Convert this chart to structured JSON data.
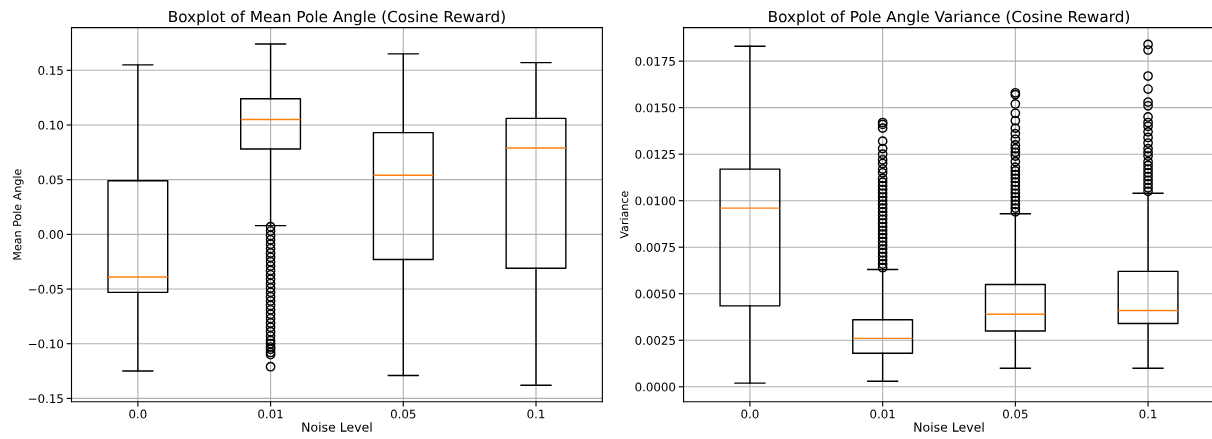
{
  "chart_data": [
    {
      "type": "box",
      "title": "Boxplot of Mean Pole Angle (Cosine Reward)",
      "xlabel": "Noise Level",
      "ylabel": "Mean Pole Angle",
      "categories": [
        "0.0",
        "0.01",
        "0.05",
        "0.1"
      ],
      "boxes": [
        {
          "low": -0.125,
          "q1": -0.053,
          "median": -0.039,
          "q3": 0.049,
          "high": 0.155
        },
        {
          "low": 0.008,
          "q1": 0.078,
          "median": 0.105,
          "q3": 0.124,
          "high": 0.174,
          "outliers": [
            0.007,
            0.003,
            -0.001,
            -0.005,
            -0.009,
            -0.013,
            -0.017,
            -0.021,
            -0.025,
            -0.029,
            -0.033,
            -0.037,
            -0.041,
            -0.045,
            -0.049,
            -0.053,
            -0.057,
            -0.061,
            -0.065,
            -0.069,
            -0.073,
            -0.077,
            -0.081,
            -0.085,
            -0.089,
            -0.093,
            -0.097,
            -0.1,
            -0.103,
            -0.105,
            -0.108,
            -0.11,
            -0.121
          ]
        },
        {
          "low": -0.129,
          "q1": -0.023,
          "median": 0.054,
          "q3": 0.093,
          "high": 0.165
        },
        {
          "low": -0.138,
          "q1": -0.031,
          "median": 0.079,
          "q3": 0.106,
          "high": 0.157
        }
      ],
      "ylim": [
        -0.153,
        0.189
      ],
      "yticks": [
        {
          "value": -0.15,
          "label": "−0.15"
        },
        {
          "value": -0.1,
          "label": "−0.10"
        },
        {
          "value": -0.05,
          "label": "−0.05"
        },
        {
          "value": 0,
          "label": "0.00"
        },
        {
          "value": 0.05,
          "label": "0.05"
        },
        {
          "value": 0.1,
          "label": "0.10"
        },
        {
          "value": 0.15,
          "label": "0.15"
        }
      ],
      "grid": true,
      "marker": "circle"
    },
    {
      "type": "box",
      "title": "Boxplot of Pole Angle Variance (Cosine Reward)",
      "xlabel": "Noise Level",
      "ylabel": "Variance",
      "categories": [
        "0.0",
        "0.01",
        "0.05",
        "0.1"
      ],
      "boxes": [
        {
          "low": 0.0002,
          "q1": 0.00435,
          "median": 0.0096,
          "q3": 0.0117,
          "high": 0.0183
        },
        {
          "low": 0.0003,
          "q1": 0.0018,
          "median": 0.0026,
          "q3": 0.0036,
          "high": 0.0063,
          "outliers": [
            0.0064,
            0.0066,
            0.0068,
            0.007,
            0.0072,
            0.0074,
            0.0076,
            0.0078,
            0.008,
            0.0082,
            0.0084,
            0.0086,
            0.0088,
            0.009,
            0.0092,
            0.0094,
            0.0096,
            0.0098,
            0.01,
            0.0102,
            0.0104,
            0.0106,
            0.0108,
            0.011,
            0.0112,
            0.0115,
            0.0117,
            0.012,
            0.0122,
            0.0125,
            0.0128,
            0.0132,
            0.0139,
            0.0141,
            0.0142
          ]
        },
        {
          "low": 0.001,
          "q1": 0.003,
          "median": 0.0039,
          "q3": 0.0055,
          "high": 0.0093,
          "outliers": [
            0.0094,
            0.0096,
            0.0098,
            0.01,
            0.0102,
            0.0104,
            0.0106,
            0.0108,
            0.011,
            0.0112,
            0.0114,
            0.0116,
            0.0118,
            0.0121,
            0.0124,
            0.0126,
            0.0128,
            0.013,
            0.0133,
            0.0136,
            0.0139,
            0.0143,
            0.0147,
            0.0152,
            0.0157,
            0.0158
          ]
        },
        {
          "low": 0.001,
          "q1": 0.0034,
          "median": 0.0041,
          "q3": 0.0062,
          "high": 0.0104,
          "outliers": [
            0.0105,
            0.0107,
            0.0109,
            0.0111,
            0.0113,
            0.0115,
            0.0117,
            0.0119,
            0.0121,
            0.0124,
            0.0126,
            0.0128,
            0.0131,
            0.0134,
            0.0137,
            0.014,
            0.0142,
            0.0145,
            0.0151,
            0.0153,
            0.016,
            0.0167,
            0.0181,
            0.0184
          ]
        }
      ],
      "ylim": [
        -0.0008,
        0.0193
      ],
      "yticks": [
        {
          "value": 0,
          "label": "0.0000"
        },
        {
          "value": 0.0025,
          "label": "0.0025"
        },
        {
          "value": 0.005,
          "label": "0.0050"
        },
        {
          "value": 0.0075,
          "label": "0.0075"
        },
        {
          "value": 0.01,
          "label": "0.0100"
        },
        {
          "value": 0.0125,
          "label": "0.0125"
        },
        {
          "value": 0.015,
          "label": "0.0150"
        },
        {
          "value": 0.0175,
          "label": "0.0175"
        }
      ],
      "grid": true,
      "marker": "circle"
    }
  ]
}
